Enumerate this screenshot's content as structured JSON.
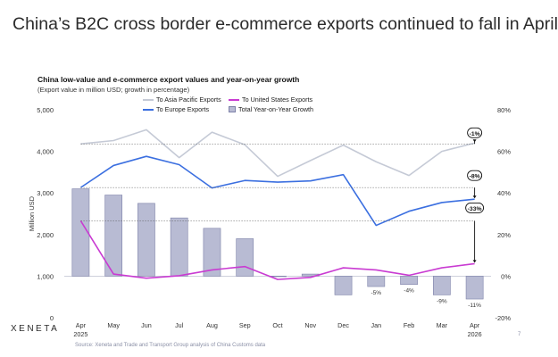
{
  "slide_title": "China’s B2C cross border e-commerce exports continued to fall in April",
  "brand": "XENETA",
  "source": "Source: Xeneta and Trade and Transport Group analysis of China Customs data",
  "page_number": "7",
  "chart_data": {
    "type": "bar+line",
    "title": "China low-value and e-commerce export values and year-on-year growth",
    "subtitle": "(Export value in million USD; growth in percentage)",
    "ylabel": "Million USD",
    "ylim": [
      0,
      5000
    ],
    "y2lim": [
      -20,
      80
    ],
    "y_ticks": [
      "0",
      "1,000",
      "2,000",
      "3,000",
      "4,000",
      "5,000"
    ],
    "y2_ticks": [
      "-20%",
      "0%",
      "20%",
      "40%",
      "60%",
      "80%"
    ],
    "categories": [
      {
        "month": "Apr",
        "year": "2025"
      },
      {
        "month": "May",
        "year": ""
      },
      {
        "month": "Jun",
        "year": ""
      },
      {
        "month": "Jul",
        "year": ""
      },
      {
        "month": "Aug",
        "year": ""
      },
      {
        "month": "Sep",
        "year": ""
      },
      {
        "month": "Oct",
        "year": ""
      },
      {
        "month": "Nov",
        "year": ""
      },
      {
        "month": "Dec",
        "year": ""
      },
      {
        "month": "Jan",
        "year": ""
      },
      {
        "month": "Feb",
        "year": ""
      },
      {
        "month": "Mar",
        "year": ""
      },
      {
        "month": "Apr",
        "year": "2026"
      }
    ],
    "legend": [
      {
        "name": "To Asia Pacific Exports",
        "kind": "line",
        "color": "#c5cad6"
      },
      {
        "name": "To United States Exports",
        "kind": "line",
        "color": "#c93bd2"
      },
      {
        "name": "To Europe Exports",
        "kind": "line",
        "color": "#3b6fe0"
      },
      {
        "name": "Total Year-on-Year Growth",
        "kind": "bar",
        "color": "#b8bbd3"
      }
    ],
    "series": [
      {
        "name": "To Asia Pacific Exports",
        "axis": "left",
        "color": "#c5cad6",
        "values": [
          4180,
          4260,
          4520,
          3850,
          4460,
          4160,
          3400,
          3780,
          4150,
          3750,
          3420,
          4000,
          4200
        ]
      },
      {
        "name": "To United States Exports",
        "axis": "left",
        "color": "#c93bd2",
        "values": [
          2330,
          1050,
          950,
          1010,
          1150,
          1230,
          920,
          970,
          1200,
          1150,
          1020,
          1200,
          1300
        ]
      },
      {
        "name": "To Europe Exports",
        "axis": "left",
        "color": "#3b6fe0",
        "values": [
          3130,
          3660,
          3880,
          3680,
          3120,
          3300,
          3260,
          3290,
          3440,
          2220,
          2560,
          2770,
          2850
        ]
      }
    ],
    "growth": {
      "name": "Total Year-on-Year Growth",
      "axis": "right",
      "color": "#b8bbd3",
      "values": [
        42,
        39,
        35,
        28,
        23,
        18,
        0,
        1,
        -9,
        -5,
        -4,
        -9,
        -11
      ],
      "labels": [
        "",
        "",
        "",
        "",
        "",
        "",
        "",
        "",
        "",
        "-5%",
        "-4%",
        "-9%",
        "-11%"
      ]
    },
    "callouts": [
      {
        "text": "-1%",
        "series": "To Asia Pacific Exports"
      },
      {
        "text": "-8%",
        "series": "To Europe Exports"
      },
      {
        "text": "-33%",
        "series": "To United States Exports"
      }
    ]
  }
}
